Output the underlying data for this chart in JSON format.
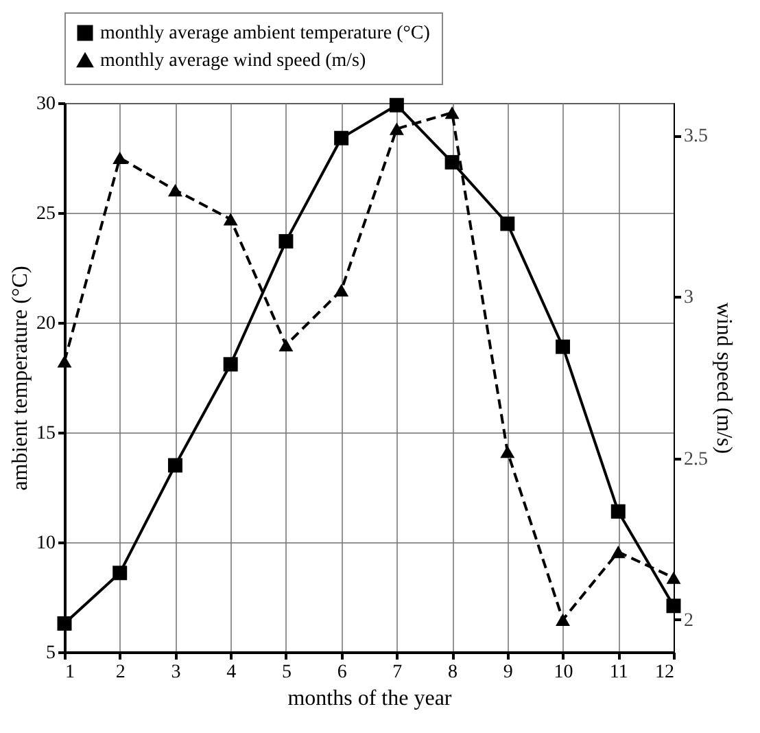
{
  "chart_data": {
    "type": "line",
    "xlabel": "months of the year",
    "ylabel": "ambient temperature (°C)",
    "y2label": "wind speed (m/s)",
    "x": [
      1,
      2,
      3,
      4,
      5,
      6,
      7,
      8,
      9,
      10,
      11,
      12
    ],
    "xlim": [
      1,
      12
    ],
    "xticks": [
      1,
      2,
      3,
      4,
      5,
      6,
      7,
      8,
      9,
      10,
      11,
      12
    ],
    "ylim": [
      5,
      30
    ],
    "yticks": [
      5,
      10,
      15,
      20,
      25,
      30
    ],
    "y2lim": [
      1.9,
      3.6
    ],
    "y2ticks": [
      2,
      2.5,
      3,
      3.5
    ],
    "series": [
      {
        "name": "monthly average ambient temperature (°C)",
        "color": "#000000",
        "marker": "square",
        "line_style": "solid",
        "values": [
          6.3,
          8.6,
          13.5,
          18.1,
          23.7,
          28.4,
          29.9,
          27.3,
          24.5,
          18.9,
          11.4,
          7.1
        ]
      },
      {
        "name": "monthly average wind speed (m/s)",
        "color": "#000000",
        "marker": "triangle",
        "line_style": "dashed",
        "axis": "y2",
        "values": [
          2.8,
          3.43,
          3.33,
          3.24,
          2.85,
          3.02,
          3.52,
          3.57,
          2.52,
          2.0,
          2.21,
          2.13
        ]
      }
    ],
    "grid": true,
    "legend": "top"
  }
}
